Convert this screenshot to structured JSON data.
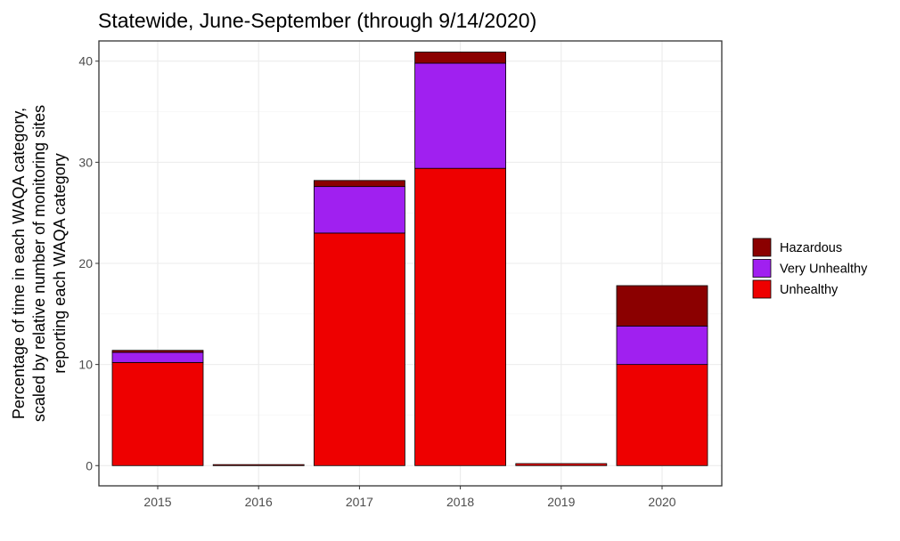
{
  "chart_data": {
    "type": "bar",
    "stacked": true,
    "title": "Statewide, June-September (through 9/14/2020)",
    "ylabel": "Percentage of time in each WAQA category,\nscaled by relative number of monitoring sites\nreporting each WAQA category",
    "xlabel": "",
    "categories": [
      "2015",
      "2016",
      "2017",
      "2018",
      "2019",
      "2020"
    ],
    "ylim": [
      -2,
      42
    ],
    "yticks": [
      0,
      10,
      20,
      30,
      40
    ],
    "grid": true,
    "legend_position": "right",
    "series": [
      {
        "name": "Unhealthy",
        "color": "#ee0000",
        "values": [
          10.2,
          0.1,
          23.0,
          29.4,
          0.2,
          10.0
        ]
      },
      {
        "name": "Very Unhealthy",
        "color": "#a020f0",
        "values": [
          1.0,
          0.0,
          4.6,
          10.4,
          0.0,
          3.8
        ]
      },
      {
        "name": "Hazardous",
        "color": "#8b0000",
        "values": [
          0.2,
          0.0,
          0.6,
          1.1,
          0.0,
          4.0
        ]
      }
    ],
    "legend_order": [
      "Hazardous",
      "Very Unhealthy",
      "Unhealthy"
    ]
  }
}
